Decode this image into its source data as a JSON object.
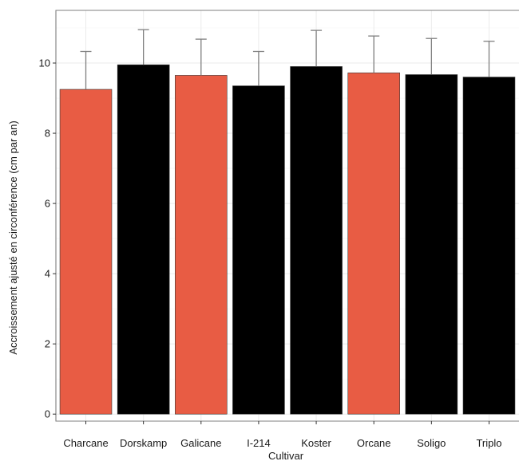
{
  "chart_data": {
    "type": "bar",
    "title": "",
    "xlabel": "Cultivar",
    "ylabel": "Accroissement ajusté en circonférence (cm par an)",
    "categories": [
      "Charcane",
      "Dorskamp",
      "Galicane",
      "I-214",
      "Koster",
      "Orcane",
      "Soligo",
      "Triplo"
    ],
    "values": [
      9.25,
      9.95,
      9.65,
      9.35,
      9.9,
      9.72,
      9.67,
      9.6
    ],
    "error_upper": [
      10.33,
      10.95,
      10.68,
      10.33,
      10.93,
      10.77,
      10.7,
      10.62
    ],
    "bar_colors": [
      "#e85c44",
      "#000000",
      "#e85c44",
      "#000000",
      "#000000",
      "#e85c44",
      "#000000",
      "#000000"
    ],
    "ylim": [
      -0.2,
      11.5
    ],
    "yticks": [
      0,
      2,
      4,
      6,
      8,
      10
    ],
    "grid": true,
    "legend": "none"
  },
  "colors": {
    "highlight": "#e85c44",
    "default": "#000000",
    "error_bar": "#7f7f7f",
    "grid": "#ebebeb",
    "panel_border": "#7f7f7f"
  }
}
